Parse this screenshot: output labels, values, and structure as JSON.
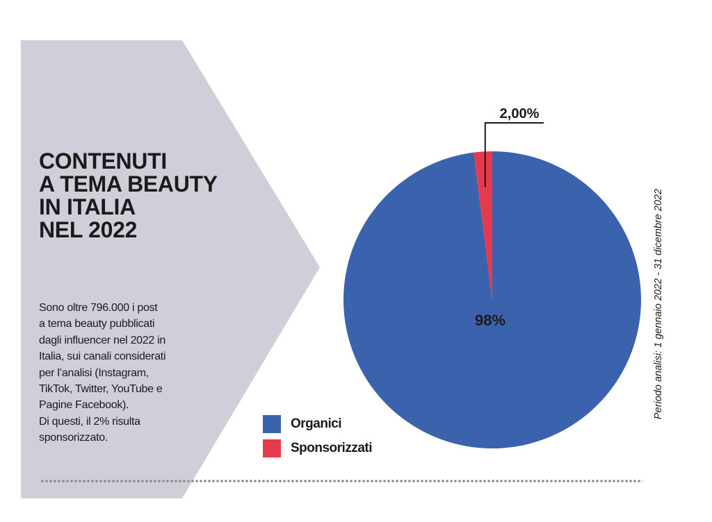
{
  "title_lines": [
    "CONTENUTI",
    "A TEMA BEAUTY",
    "IN ITALIA",
    "NEL 2022"
  ],
  "description_lines": [
    "Sono oltre 796.000 i post",
    "a tema beauty pubblicati",
    "dagli influencer nel 2022 in",
    "Italia, sui canali considerati",
    "per l’analisi (Instagram,",
    "TikTok, Twitter, YouTube e",
    "Pagine Facebook).",
    "Di questi, il 2% risulta",
    "sponsorizzato."
  ],
  "period_note": "Periodo analisi: 1 gennaio 2022 - 31 dicembre 2022",
  "colors": {
    "panel": "#cfcfd9",
    "organici": "#3b62ad",
    "sponsorizzati": "#e63b4f"
  },
  "chart_data": {
    "type": "pie",
    "series": [
      {
        "name": "Organici",
        "value": 98,
        "label": "98%",
        "color": "#3b62ad"
      },
      {
        "name": "Sponsorizzati",
        "value": 2,
        "label": "2,00%",
        "color": "#e63b4f"
      }
    ],
    "legend": [
      "Organici",
      "Sponsorizzati"
    ],
    "legend_position": "bottom-left"
  }
}
